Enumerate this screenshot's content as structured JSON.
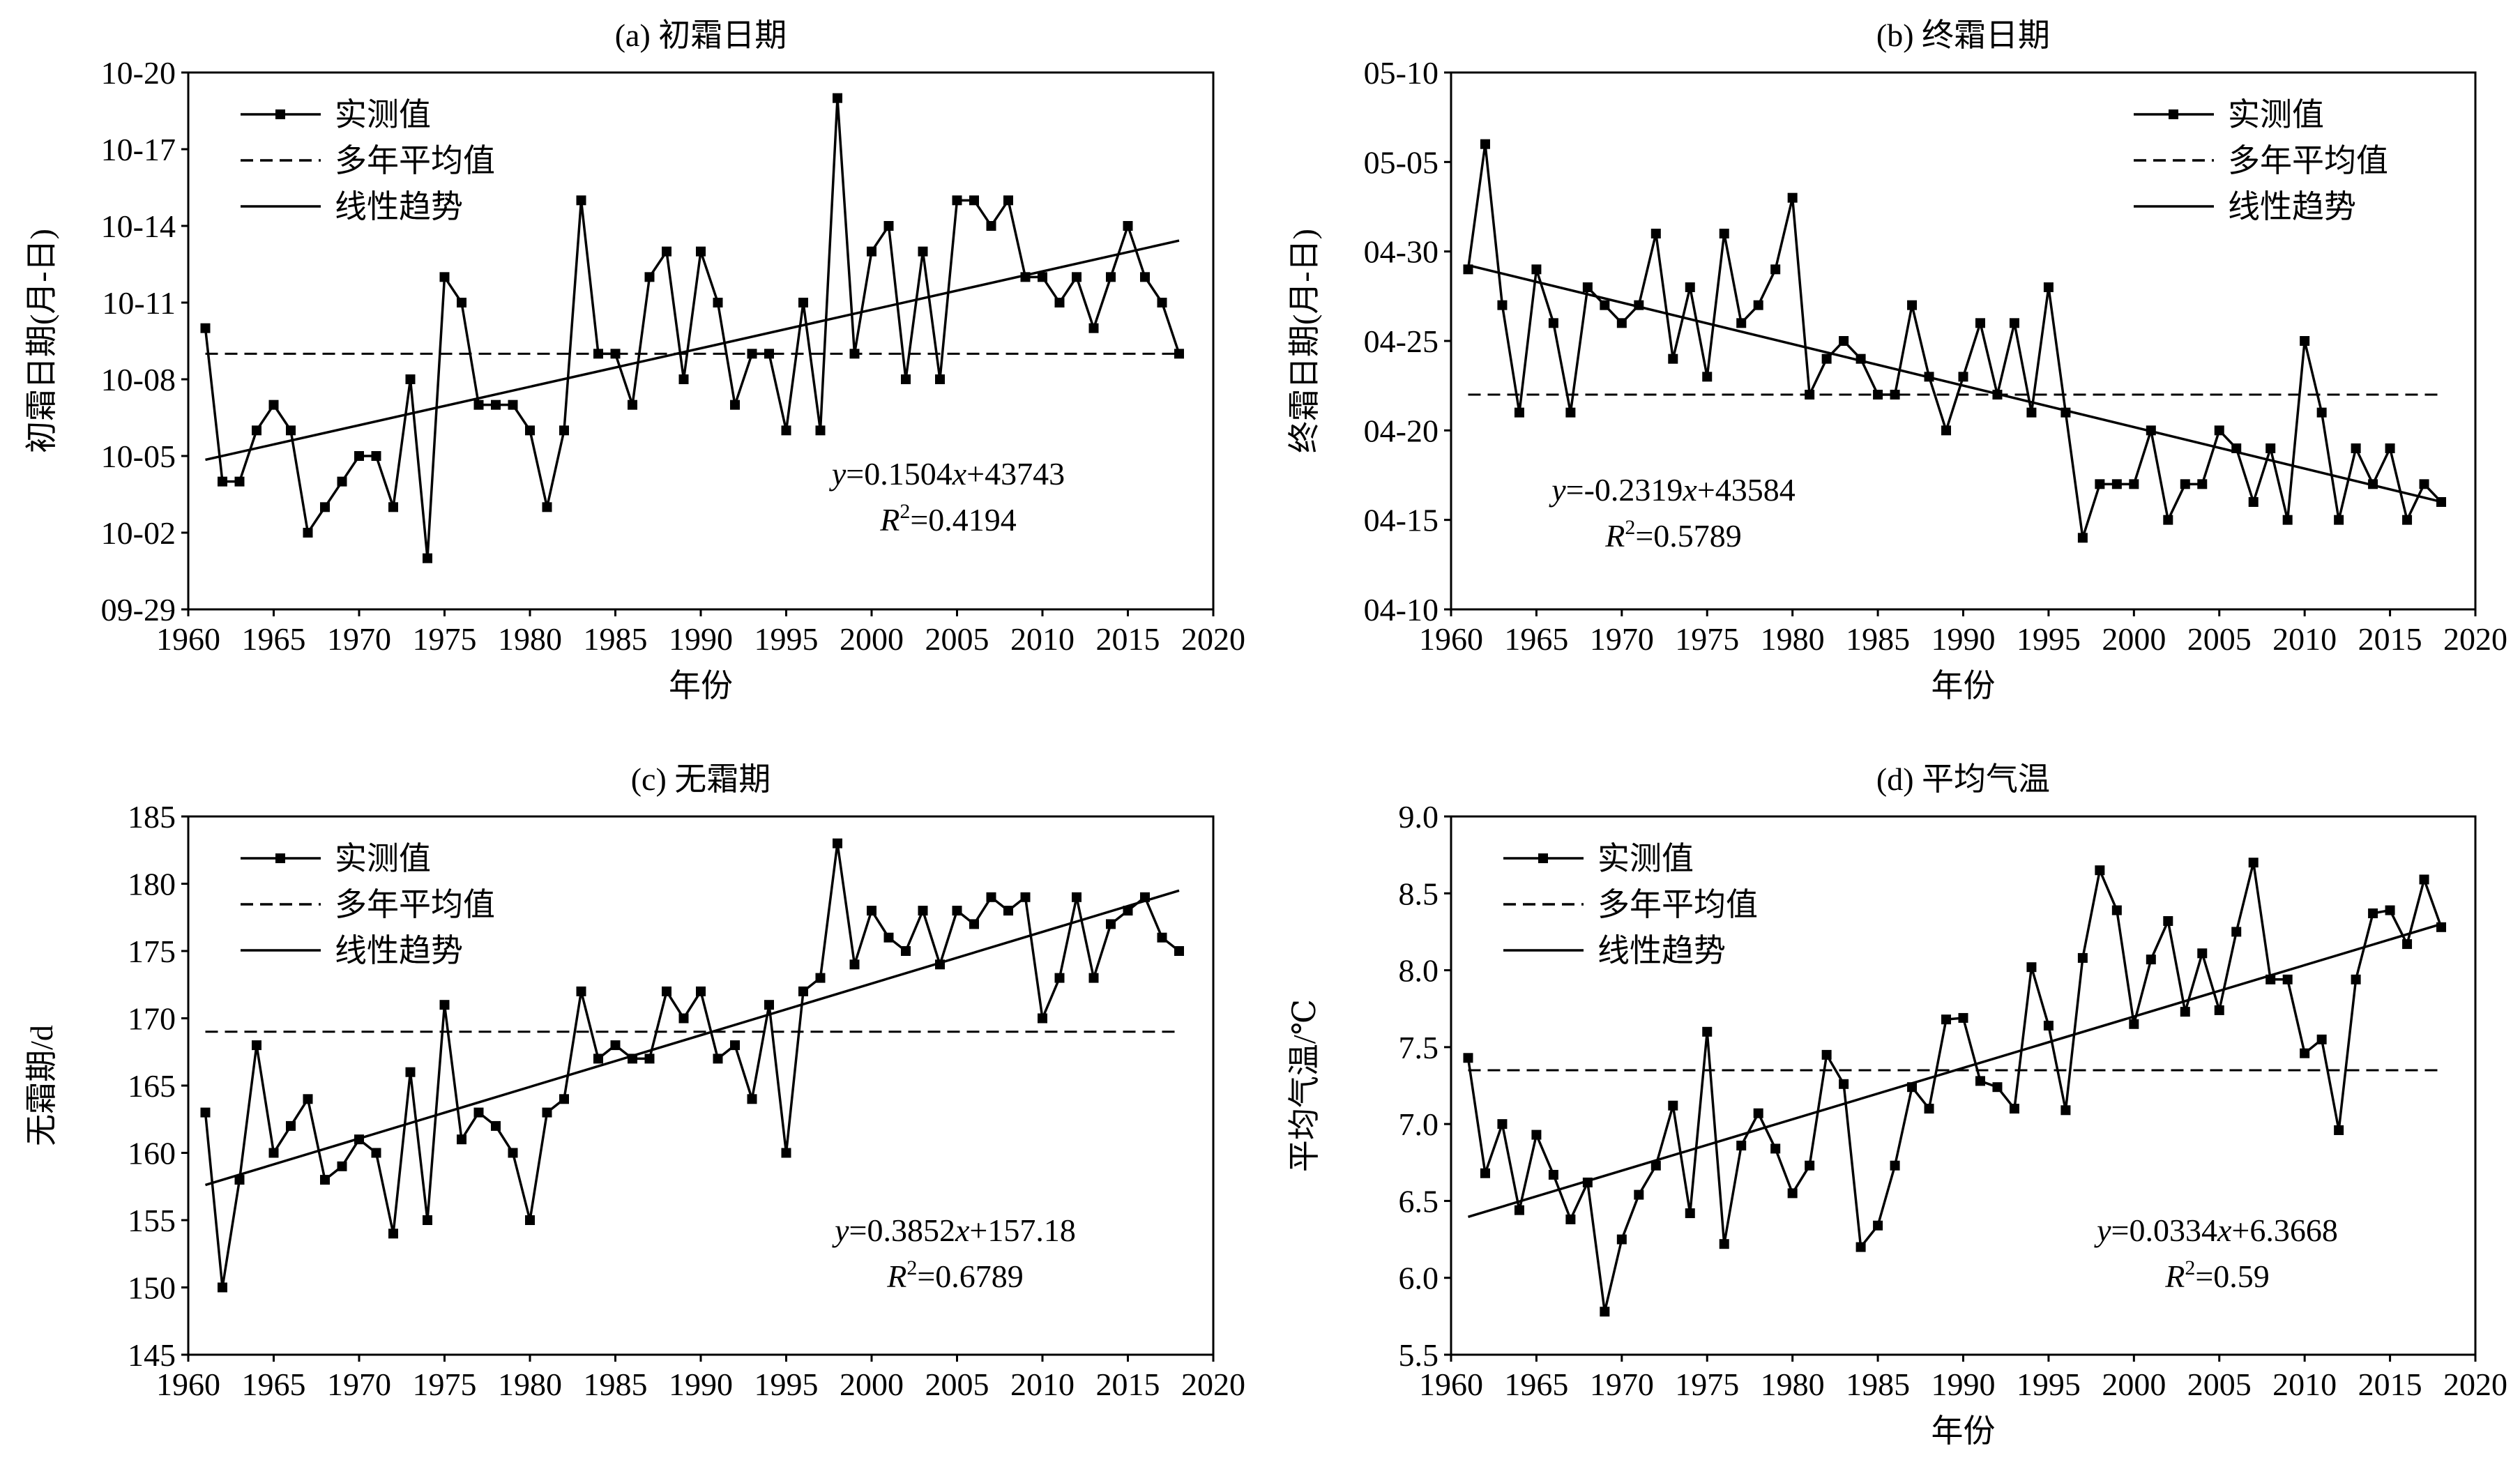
{
  "chart_data": [
    {
      "type": "line",
      "title": "(a) 初霜日期",
      "xlabel": "年份",
      "ylabel": "初霜日期(月-日)",
      "date_axis": true,
      "xlim": [
        1960,
        2020
      ],
      "xticks": [
        "1960",
        "1965",
        "1970",
        "1975",
        "1980",
        "1985",
        "1990",
        "1995",
        "2000",
        "2005",
        "2010",
        "2015",
        "2020"
      ],
      "ylim": [
        "09-29",
        "10-20"
      ],
      "yticks": [
        "09-29",
        "10-02",
        "10-05",
        "10-08",
        "10-11",
        "10-14",
        "10-17",
        "10-20"
      ],
      "legend": [
        "实测值",
        "多年平均值",
        "线性趋势"
      ],
      "legend_position": "top-left",
      "mean_line": "10-09",
      "equation": {
        "y": "y",
        "eq": "=0.1504",
        "x": "x",
        "rest": "+43743",
        "r": "R",
        "sup": "2",
        "r_val": "=0.4194"
      },
      "x": [
        1961,
        1962,
        1963,
        1964,
        1965,
        1966,
        1967,
        1968,
        1969,
        1970,
        1971,
        1972,
        1973,
        1974,
        1975,
        1976,
        1977,
        1978,
        1979,
        1980,
        1981,
        1982,
        1983,
        1984,
        1985,
        1986,
        1987,
        1988,
        1989,
        1990,
        1991,
        1992,
        1993,
        1994,
        1995,
        1996,
        1997,
        1998,
        1999,
        2000,
        2001,
        2002,
        2003,
        2004,
        2005,
        2006,
        2007,
        2008,
        2009,
        2010,
        2011,
        2012,
        2013,
        2014,
        2015,
        2016,
        2017,
        2018
      ],
      "values": [
        "10-10",
        "10-04",
        "10-04",
        "10-06",
        "10-07",
        "10-06",
        "10-02",
        "10-03",
        "10-04",
        "10-05",
        "10-05",
        "10-03",
        "10-08",
        "10-01",
        "10-12",
        "10-11",
        "10-07",
        "10-07",
        "10-07",
        "10-06",
        "10-03",
        "10-06",
        "10-15",
        "10-09",
        "10-09",
        "10-07",
        "10-12",
        "10-13",
        "10-08",
        "10-13",
        "10-11",
        "10-07",
        "10-09",
        "10-09",
        "10-06",
        "10-11",
        "10-06",
        "10-19",
        "10-09",
        "10-13",
        "10-14",
        "10-08",
        "10-13",
        "10-08",
        "10-15",
        "10-15",
        "10-14",
        "10-15",
        "10-12",
        "10-12",
        "10-11",
        "10-12",
        "10-10",
        "10-12",
        "10-14",
        "10-12",
        "10-11",
        "10-09"
      ]
    },
    {
      "type": "line",
      "title": "(b) 终霜日期",
      "xlabel": "年份",
      "ylabel": "终霜日期(月-日)",
      "date_axis": true,
      "xlim": [
        1960,
        2020
      ],
      "xticks": [
        "1960",
        "1965",
        "1970",
        "1975",
        "1980",
        "1985",
        "1990",
        "1995",
        "2000",
        "2005",
        "2010",
        "2015",
        "2020"
      ],
      "ylim": [
        "04-10",
        "05-10"
      ],
      "yticks": [
        "04-10",
        "04-15",
        "04-20",
        "04-25",
        "04-30",
        "05-05",
        "05-10"
      ],
      "legend": [
        "实测值",
        "多年平均值",
        "线性趋势"
      ],
      "legend_position": "top-right",
      "mean_line": "04-22",
      "equation": {
        "y": "y",
        "eq": "=-0.2319",
        "x": "x",
        "rest": "+43584",
        "r": "R",
        "sup": "2",
        "r_val": "=0.5789"
      },
      "x": [
        1961,
        1962,
        1963,
        1964,
        1965,
        1966,
        1967,
        1968,
        1969,
        1970,
        1971,
        1972,
        1973,
        1974,
        1975,
        1976,
        1977,
        1978,
        1979,
        1980,
        1981,
        1982,
        1983,
        1984,
        1985,
        1986,
        1987,
        1988,
        1989,
        1990,
        1991,
        1992,
        1993,
        1994,
        1995,
        1996,
        1997,
        1998,
        1999,
        2000,
        2001,
        2002,
        2003,
        2004,
        2005,
        2006,
        2007,
        2008,
        2009,
        2010,
        2011,
        2012,
        2013,
        2014,
        2015,
        2016,
        2017,
        2018
      ],
      "values": [
        "04-29",
        "05-06",
        "04-27",
        "04-21",
        "04-29",
        "04-26",
        "04-21",
        "04-28",
        "04-27",
        "04-26",
        "04-27",
        "05-01",
        "04-24",
        "04-28",
        "04-23",
        "05-01",
        "04-26",
        "04-27",
        "04-29",
        "05-03",
        "04-22",
        "04-24",
        "04-25",
        "04-24",
        "04-22",
        "04-22",
        "04-27",
        "04-23",
        "04-20",
        "04-23",
        "04-26",
        "04-22",
        "04-26",
        "04-21",
        "04-28",
        "04-21",
        "04-14",
        "04-17",
        "04-17",
        "04-17",
        "04-20",
        "04-15",
        "04-17",
        "04-17",
        "04-20",
        "04-19",
        "04-16",
        "04-19",
        "04-15",
        "04-25",
        "04-21",
        "04-15",
        "04-19",
        "04-17",
        "04-19",
        "04-15",
        "04-17",
        "04-16"
      ]
    },
    {
      "type": "line",
      "title": "(c) 无霜期",
      "xlabel": "",
      "ylabel": "无霜期/d",
      "date_axis": false,
      "xlim": [
        1960,
        2020
      ],
      "xticks": [
        "1960",
        "1965",
        "1970",
        "1975",
        "1980",
        "1985",
        "1990",
        "1995",
        "2000",
        "2005",
        "2010",
        "2015",
        "2020"
      ],
      "ylim": [
        145,
        185
      ],
      "yticks": [
        "145",
        "150",
        "155",
        "160",
        "165",
        "170",
        "175",
        "180",
        "185"
      ],
      "legend": [
        "实测值",
        "多年平均值",
        "线性趋势"
      ],
      "legend_position": "top-left",
      "mean_line": 169,
      "equation": {
        "y": "y",
        "eq": "=0.3852",
        "x": "x",
        "rest": "+157.18",
        "r": "R",
        "sup": "2",
        "r_val": "=0.6789"
      },
      "x": [
        1961,
        1962,
        1963,
        1964,
        1965,
        1966,
        1967,
        1968,
        1969,
        1970,
        1971,
        1972,
        1973,
        1974,
        1975,
        1976,
        1977,
        1978,
        1979,
        1980,
        1981,
        1982,
        1983,
        1984,
        1985,
        1986,
        1987,
        1988,
        1989,
        1990,
        1991,
        1992,
        1993,
        1994,
        1995,
        1996,
        1997,
        1998,
        1999,
        2000,
        2001,
        2002,
        2003,
        2004,
        2005,
        2006,
        2007,
        2008,
        2009,
        2010,
        2011,
        2012,
        2013,
        2014,
        2015,
        2016,
        2017,
        2018
      ],
      "values": [
        163,
        150,
        158,
        168,
        160,
        162,
        164,
        158,
        159,
        161,
        160,
        154,
        166,
        155,
        171,
        161,
        163,
        162,
        160,
        155,
        163,
        164,
        172,
        167,
        168,
        167,
        167,
        172,
        170,
        172,
        167,
        168,
        164,
        171,
        160,
        172,
        173,
        183,
        174,
        178,
        176,
        175,
        178,
        174,
        178,
        177,
        179,
        178,
        179,
        170,
        173,
        179,
        173,
        177,
        178,
        179,
        176,
        175
      ]
    },
    {
      "type": "line",
      "title": "(d) 平均气温",
      "xlabel": "年份",
      "ylabel": "平均气温/℃",
      "date_axis": false,
      "xlim": [
        1960,
        2020
      ],
      "xticks": [
        "1960",
        "1965",
        "1970",
        "1975",
        "1980",
        "1985",
        "1990",
        "1995",
        "2000",
        "2005",
        "2010",
        "2015",
        "2020"
      ],
      "ylim": [
        5.5,
        9.0
      ],
      "yticks": [
        "5.5",
        "6.0",
        "6.5",
        "7.0",
        "7.5",
        "8.0",
        "8.5",
        "9.0"
      ],
      "legend": [
        "实测值",
        "多年平均值",
        "线性趋势"
      ],
      "legend_position": "top-left",
      "mean_line": 7.35,
      "equation": {
        "y": "y",
        "eq": "=0.0334",
        "x": "x",
        "rest": "+6.3668",
        "r": "R",
        "sup": "2",
        "r_val": "=0.59"
      },
      "x": [
        1961,
        1962,
        1963,
        1964,
        1965,
        1966,
        1967,
        1968,
        1969,
        1970,
        1971,
        1972,
        1973,
        1974,
        1975,
        1976,
        1977,
        1978,
        1979,
        1980,
        1981,
        1982,
        1983,
        1984,
        1985,
        1986,
        1987,
        1988,
        1989,
        1990,
        1991,
        1992,
        1993,
        1994,
        1995,
        1996,
        1997,
        1998,
        1999,
        2000,
        2001,
        2002,
        2003,
        2004,
        2005,
        2006,
        2007,
        2008,
        2009,
        2010,
        2011,
        2012,
        2013,
        2014,
        2015,
        2016,
        2017,
        2018
      ],
      "values": [
        7.43,
        6.68,
        7.0,
        6.44,
        6.93,
        6.67,
        6.38,
        6.62,
        5.78,
        6.25,
        6.54,
        6.73,
        7.12,
        6.42,
        7.6,
        6.22,
        6.86,
        7.07,
        6.84,
        6.55,
        6.73,
        7.45,
        7.26,
        6.2,
        6.34,
        6.73,
        7.24,
        7.1,
        7.68,
        7.69,
        7.28,
        7.24,
        7.1,
        8.02,
        7.64,
        7.09,
        8.08,
        8.65,
        8.39,
        7.65,
        8.07,
        8.32,
        7.73,
        8.11,
        7.74,
        8.25,
        8.7,
        7.94,
        7.94,
        7.46,
        7.55,
        6.96,
        7.94,
        8.37,
        8.39,
        8.17,
        8.59,
        8.28
      ]
    }
  ]
}
